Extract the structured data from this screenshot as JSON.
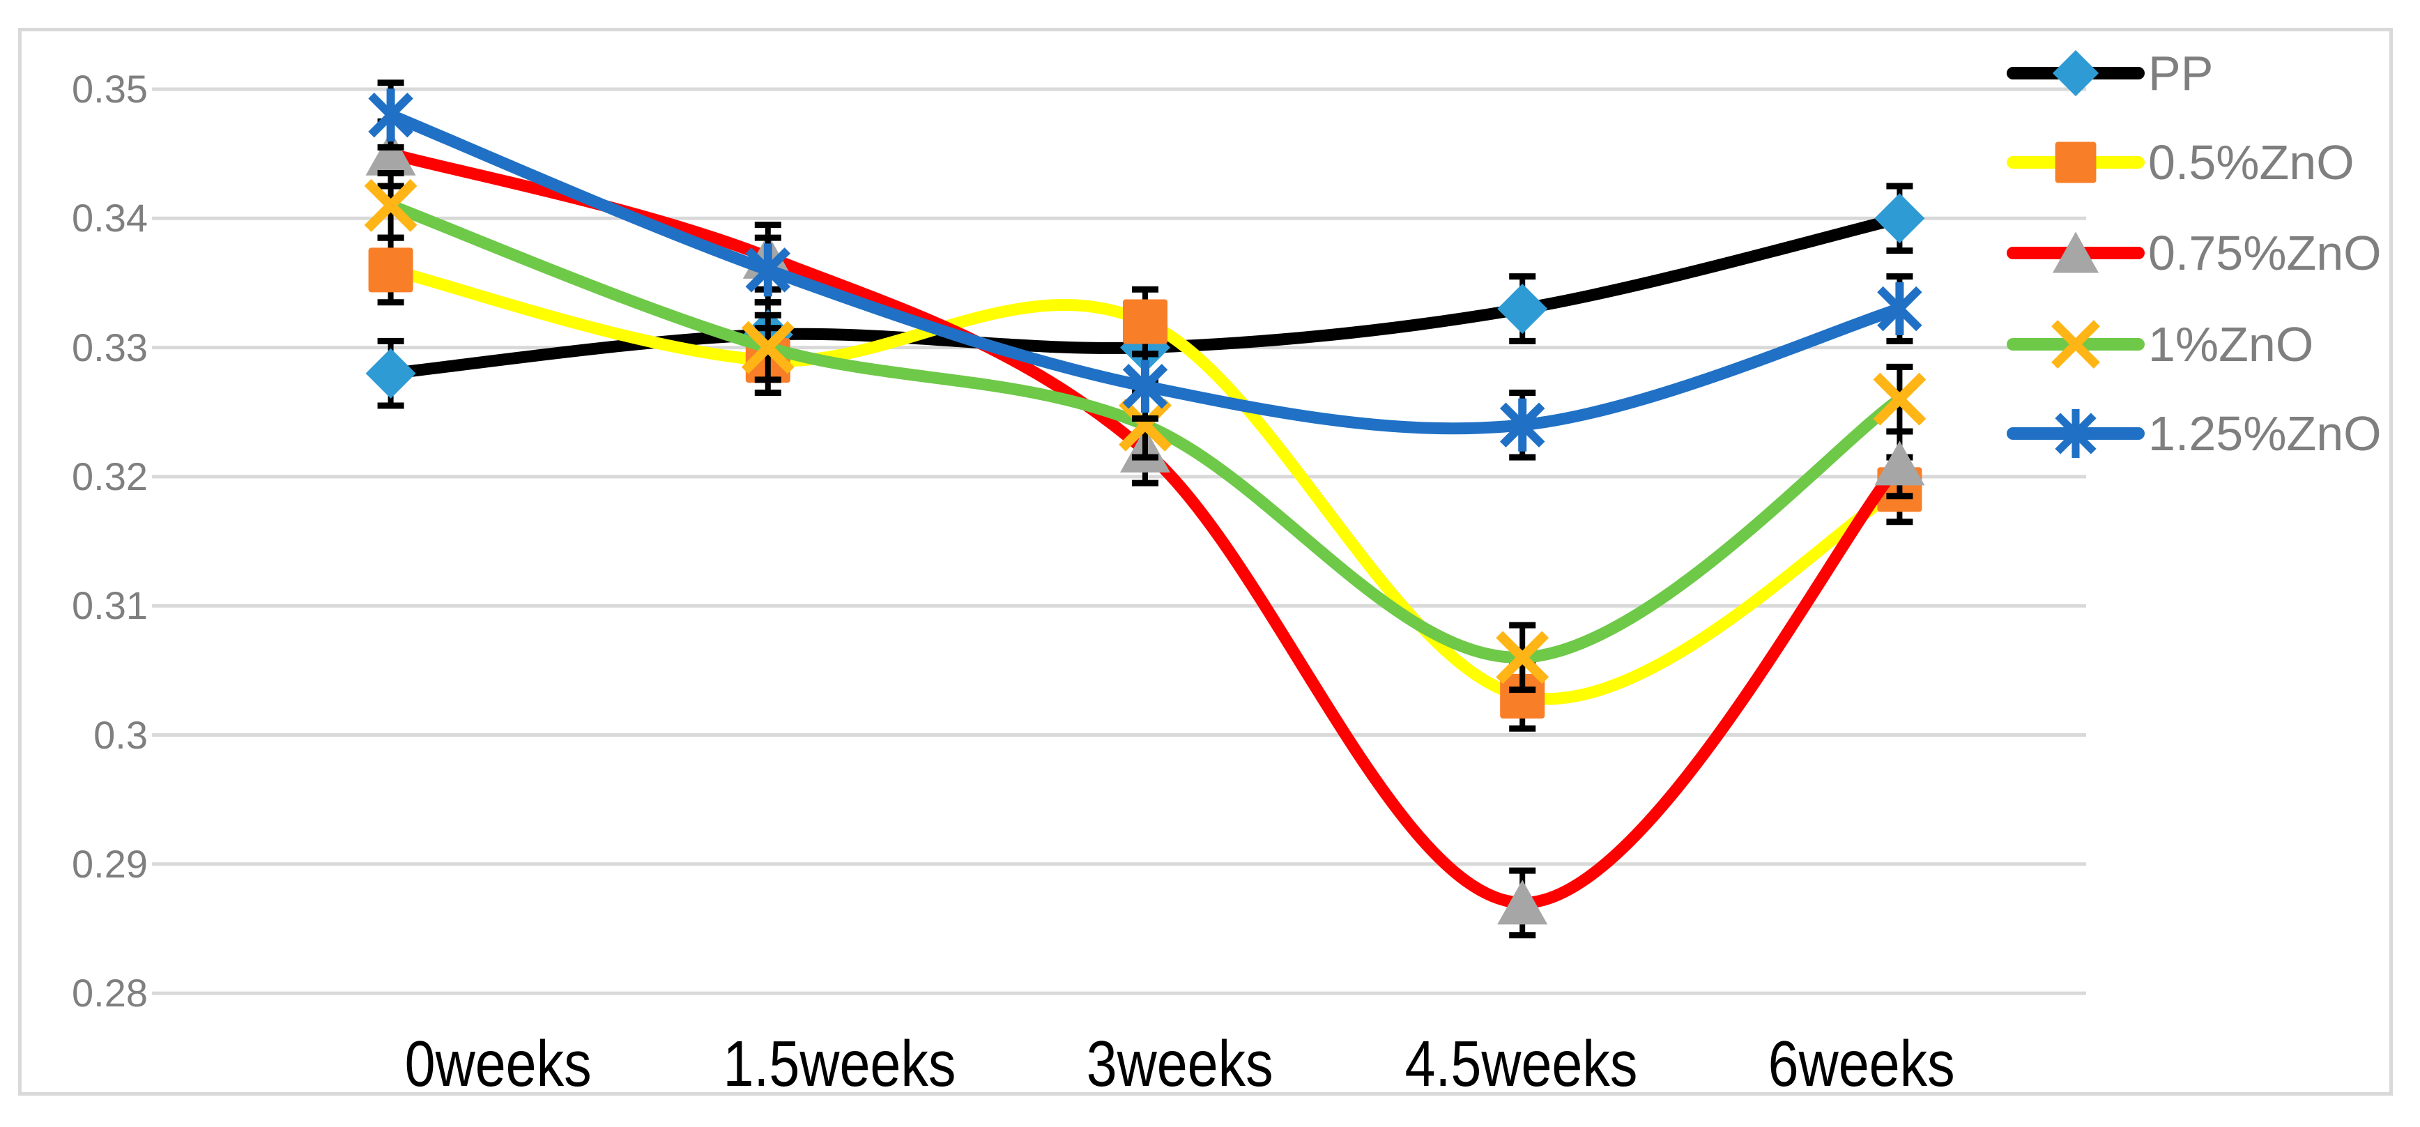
{
  "chart_data": {
    "type": "line",
    "title": "",
    "categories": [
      "0weeks",
      "1.5weeks",
      "3weeks",
      "4.5weeks",
      "6weeks"
    ],
    "series": [
      {
        "name": "PP",
        "line_color": "#000000",
        "marker_shape": "diamond",
        "marker_color": "#2E9BD5",
        "values": [
          0.328,
          0.331,
          0.33,
          0.333,
          0.34
        ]
      },
      {
        "name": "0.5%ZnO",
        "line_color": "#FFFF00",
        "marker_shape": "square",
        "marker_color": "#F97E28",
        "values": [
          0.336,
          0.329,
          0.332,
          0.303,
          0.319
        ]
      },
      {
        "name": "0.75%ZnO",
        "line_color": "#FF0000",
        "marker_shape": "triangle",
        "marker_color": "#A6A6A6",
        "values": [
          0.345,
          0.337,
          0.322,
          0.287,
          0.321
        ]
      },
      {
        "name": "1%ZnO",
        "line_color": "#6EC948",
        "marker_shape": "x",
        "marker_color": "#FFB515",
        "values": [
          0.341,
          0.33,
          0.324,
          0.306,
          0.326
        ]
      },
      {
        "name": "1.25%ZnO",
        "line_color": "#2071C5",
        "marker_shape": "asterisk",
        "marker_color": "#2071C5",
        "values": [
          0.348,
          0.336,
          0.327,
          0.324,
          0.333
        ]
      }
    ],
    "error_bar_value": 0.0025,
    "x_axis": {
      "label": "",
      "tick_labels": [
        "0weeks",
        "1.5weeks",
        "3weeks",
        "4.5weeks",
        "6weeks"
      ]
    },
    "y_axis": {
      "label": "",
      "min": 0.28,
      "max": 0.35,
      "step": 0.01,
      "tick_labels": [
        "0.35",
        "0.34",
        "0.33",
        "0.32",
        "0.31",
        "0.3",
        "0.29",
        "0.28"
      ]
    },
    "smoothed_lines": true,
    "grid": "horizontal",
    "legend_position": "right",
    "legend_labels": [
      "PP",
      "0.5%ZnO",
      "0.75%ZnO",
      "1%ZnO",
      "1.25%ZnO"
    ]
  },
  "colors": {
    "background": "#FFFFFF",
    "frame_border": "#D9D9D9",
    "gridline": "#D9D9D9",
    "y_tick_text": "#7F7F7F",
    "x_tick_text": "#000000",
    "legend_text": "#7F7F7F",
    "error_bar": "#000000"
  }
}
